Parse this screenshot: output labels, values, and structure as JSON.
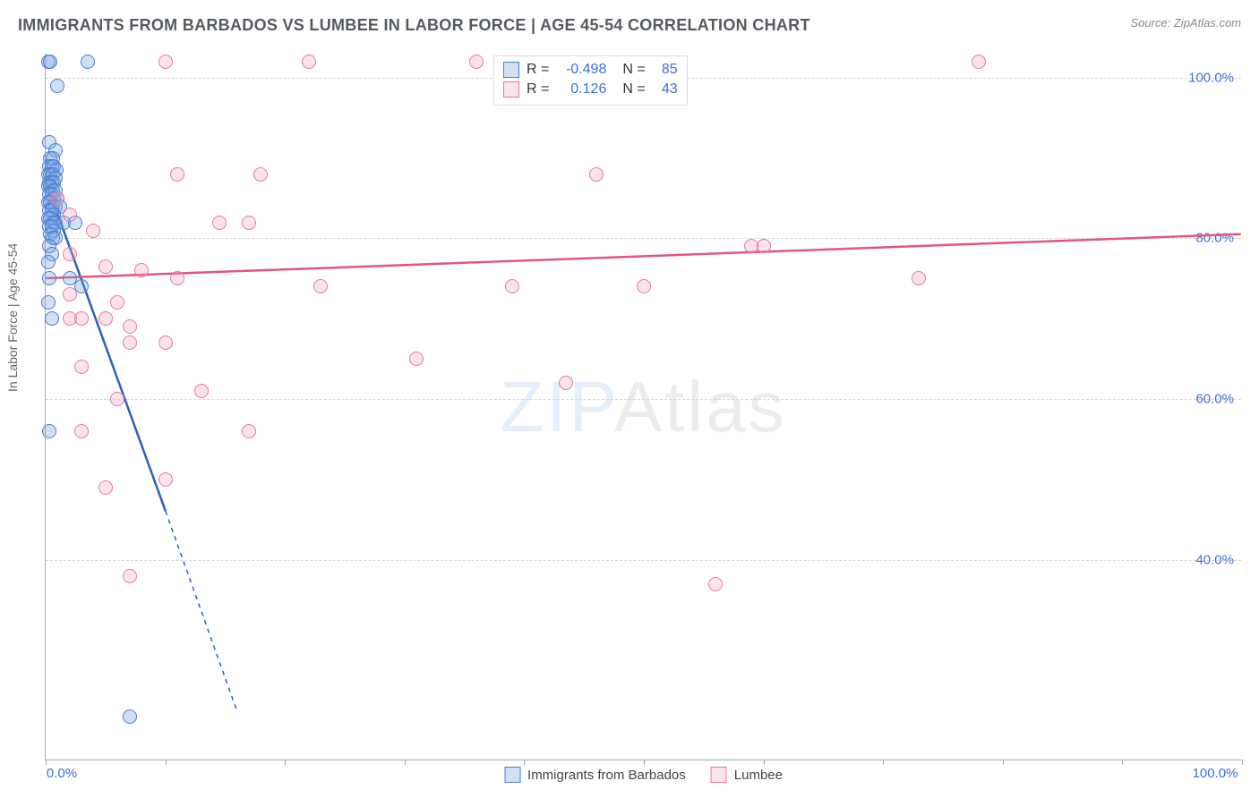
{
  "title": "IMMIGRANTS FROM BARBADOS VS LUMBEE IN LABOR FORCE | AGE 45-54 CORRELATION CHART",
  "source": "Source: ZipAtlas.com",
  "ylabel": "In Labor Force | Age 45-54",
  "watermark_a": "ZIP",
  "watermark_b": "Atlas",
  "chart": {
    "type": "scatter",
    "xlim": [
      0,
      100
    ],
    "ylim": [
      15,
      103
    ],
    "y_gridlines": [
      40,
      60,
      80,
      100
    ],
    "y_tick_labels": [
      "40.0%",
      "60.0%",
      "80.0%",
      "100.0%"
    ],
    "x_tick_labels": {
      "0": "0.0%",
      "100": "100.0%"
    },
    "x_minor_ticks": [
      0,
      10,
      20,
      30,
      40,
      50,
      60,
      70,
      80,
      90,
      100
    ],
    "axis_label_color": "#3b6fd6",
    "grid_color": "#d6d6d6",
    "point_radius": 8,
    "series": [
      {
        "name": "Immigrants from Barbados",
        "key": "barbados",
        "fill": "rgba(120,165,230,0.35)",
        "stroke": "#4a7cd0",
        "line_color": "#2e5fb8",
        "R": "-0.498",
        "N": "85",
        "regression": {
          "x1": 0,
          "y1": 87,
          "x2": 10,
          "y2": 46,
          "dash_x2": 16,
          "dash_y2": 21
        },
        "points": [
          [
            0.2,
            102
          ],
          [
            0.4,
            102
          ],
          [
            3.5,
            102
          ],
          [
            1,
            99
          ],
          [
            0.3,
            92
          ],
          [
            0.8,
            91
          ],
          [
            0.4,
            90
          ],
          [
            0.6,
            90
          ],
          [
            0.3,
            89
          ],
          [
            0.5,
            89
          ],
          [
            0.7,
            89
          ],
          [
            0.9,
            88.5
          ],
          [
            0.2,
            88
          ],
          [
            0.4,
            88
          ],
          [
            0.6,
            88
          ],
          [
            0.8,
            87.5
          ],
          [
            0.3,
            87
          ],
          [
            0.5,
            87
          ],
          [
            0.7,
            87
          ],
          [
            0.2,
            86.5
          ],
          [
            0.4,
            86.5
          ],
          [
            0.6,
            86
          ],
          [
            0.8,
            86
          ],
          [
            0.3,
            85.5
          ],
          [
            0.5,
            85.5
          ],
          [
            0.7,
            85
          ],
          [
            1.0,
            85
          ],
          [
            0.2,
            84.5
          ],
          [
            0.4,
            84.5
          ],
          [
            0.6,
            84
          ],
          [
            0.8,
            84
          ],
          [
            1.2,
            84
          ],
          [
            0.3,
            83.5
          ],
          [
            0.5,
            83.5
          ],
          [
            0.7,
            83
          ],
          [
            0.2,
            82.5
          ],
          [
            0.4,
            82.5
          ],
          [
            0.6,
            82
          ],
          [
            0.8,
            82
          ],
          [
            1.5,
            82
          ],
          [
            2.5,
            82
          ],
          [
            0.3,
            81.5
          ],
          [
            0.5,
            81.5
          ],
          [
            0.7,
            81
          ],
          [
            0.4,
            80.5
          ],
          [
            0.6,
            80
          ],
          [
            0.8,
            80
          ],
          [
            0.3,
            79
          ],
          [
            0.5,
            78
          ],
          [
            0.2,
            77
          ],
          [
            0.3,
            75
          ],
          [
            2,
            75
          ],
          [
            3,
            74
          ],
          [
            0.2,
            72
          ],
          [
            0.5,
            70
          ],
          [
            0.3,
            56
          ],
          [
            7,
            20.5
          ]
        ]
      },
      {
        "name": "Lumbee",
        "key": "lumbee",
        "fill": "rgba(244,160,185,0.3)",
        "stroke": "#e47a9a",
        "line_color": "#e2557f",
        "R": "0.126",
        "N": "43",
        "regression": {
          "x1": 0,
          "y1": 75,
          "x2": 100,
          "y2": 80.5
        },
        "points": [
          [
            10,
            102
          ],
          [
            22,
            102
          ],
          [
            36,
            102
          ],
          [
            78,
            102
          ],
          [
            11,
            88
          ],
          [
            18,
            88
          ],
          [
            46,
            88
          ],
          [
            1,
            85
          ],
          [
            2,
            83
          ],
          [
            14.5,
            82
          ],
          [
            17,
            82
          ],
          [
            4,
            81
          ],
          [
            59,
            79
          ],
          [
            2,
            78
          ],
          [
            5,
            76.5
          ],
          [
            8,
            76
          ],
          [
            11,
            75
          ],
          [
            23,
            74
          ],
          [
            39,
            74
          ],
          [
            50,
            74
          ],
          [
            73,
            75
          ],
          [
            2,
            73
          ],
          [
            6,
            72
          ],
          [
            2,
            70
          ],
          [
            3,
            70
          ],
          [
            5,
            70
          ],
          [
            7,
            69
          ],
          [
            7,
            67
          ],
          [
            10,
            67
          ],
          [
            3,
            64
          ],
          [
            31,
            65
          ],
          [
            43.5,
            62
          ],
          [
            13,
            61
          ],
          [
            6,
            60
          ],
          [
            3,
            56
          ],
          [
            17,
            56
          ],
          [
            10,
            50
          ],
          [
            5,
            49
          ],
          [
            7,
            38
          ],
          [
            56,
            37
          ],
          [
            60,
            79
          ]
        ]
      }
    ]
  },
  "legend": {
    "barbados": "Immigrants from Barbados",
    "lumbee": "Lumbee"
  },
  "stats_labels": {
    "R": "R =",
    "N": "N ="
  }
}
